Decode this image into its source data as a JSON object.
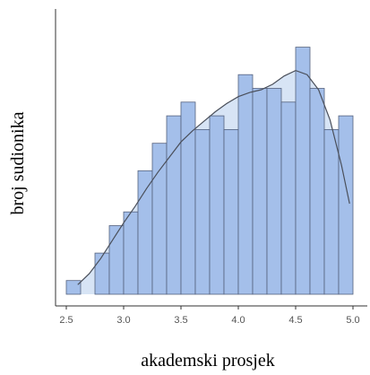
{
  "chart_data": {
    "type": "bar",
    "title": "",
    "xlabel": "akademski prosjek",
    "ylabel": "broj sudionika",
    "x_ticks": [
      "2.5",
      "3.0",
      "3.5",
      "4.0",
      "4.5",
      "5.0"
    ],
    "xlim": [
      2.45,
      5.1
    ],
    "ylim": [
      0,
      19
    ],
    "grid": false,
    "legend": "none",
    "bin_width": 0.125,
    "bins": [
      {
        "x0": 2.5,
        "x1": 2.625,
        "count": 1
      },
      {
        "x0": 2.625,
        "x1": 2.75,
        "count": 0
      },
      {
        "x0": 2.75,
        "x1": 2.875,
        "count": 3
      },
      {
        "x0": 2.875,
        "x1": 3.0,
        "count": 5
      },
      {
        "x0": 3.0,
        "x1": 3.125,
        "count": 6
      },
      {
        "x0": 3.125,
        "x1": 3.25,
        "count": 9
      },
      {
        "x0": 3.25,
        "x1": 3.375,
        "count": 11
      },
      {
        "x0": 3.375,
        "x1": 3.5,
        "count": 13
      },
      {
        "x0": 3.5,
        "x1": 3.625,
        "count": 14
      },
      {
        "x0": 3.625,
        "x1": 3.75,
        "count": 12
      },
      {
        "x0": 3.75,
        "x1": 3.875,
        "count": 13
      },
      {
        "x0": 3.875,
        "x1": 4.0,
        "count": 12
      },
      {
        "x0": 4.0,
        "x1": 4.125,
        "count": 16
      },
      {
        "x0": 4.125,
        "x1": 4.25,
        "count": 15
      },
      {
        "x0": 4.25,
        "x1": 4.375,
        "count": 15
      },
      {
        "x0": 4.375,
        "x1": 4.5,
        "count": 14
      },
      {
        "x0": 4.5,
        "x1": 4.625,
        "count": 18
      },
      {
        "x0": 4.625,
        "x1": 4.75,
        "count": 15
      },
      {
        "x0": 4.75,
        "x1": 4.875,
        "count": 12
      },
      {
        "x0": 4.875,
        "x1": 5.0,
        "count": 13
      }
    ],
    "density_curve": {
      "x": [
        2.6,
        2.7,
        2.8,
        2.9,
        3.0,
        3.1,
        3.2,
        3.3,
        3.4,
        3.5,
        3.6,
        3.7,
        3.8,
        3.9,
        4.0,
        4.1,
        4.2,
        4.3,
        4.4,
        4.5,
        4.6,
        4.7,
        4.8,
        4.9,
        4.97
      ],
      "y": [
        0.7,
        1.5,
        2.6,
        3.9,
        5.2,
        6.4,
        7.7,
        8.9,
        10.0,
        11.1,
        11.9,
        12.6,
        13.3,
        13.9,
        14.4,
        14.7,
        14.9,
        15.3,
        15.9,
        16.3,
        16.0,
        14.9,
        12.7,
        9.4,
        6.6
      ]
    },
    "colors": {
      "bar_fill": "#a4bfea",
      "bar_stroke": "#55627e",
      "density_fill": "#d7e4f5",
      "density_line": "#4a4f5a",
      "axis": "#333333",
      "tick_label": "#555555"
    }
  }
}
